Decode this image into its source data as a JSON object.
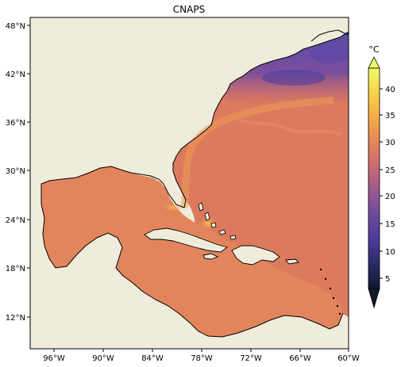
{
  "map": {
    "title": "CNAPS",
    "lon_ticks": [
      "96°W",
      "90°W",
      "84°W",
      "78°W",
      "72°W",
      "66°W",
      "60°W"
    ],
    "lat_ticks": [
      "48°N",
      "42°N",
      "36°N",
      "30°N",
      "24°N",
      "18°N",
      "12°N"
    ],
    "extent": {
      "lon": [
        -98,
        -60
      ],
      "lat": [
        8.5,
        49
      ]
    },
    "land_color": "#efecdc",
    "coastline_color": "#000000"
  },
  "colorbar": {
    "unit": "°C",
    "ticks": [
      "40",
      "35",
      "30",
      "25",
      "20",
      "15",
      "10",
      "5"
    ],
    "range": [
      1,
      45
    ],
    "extend": "both",
    "colormap": "thermal",
    "stops": [
      "#0f1a2b",
      "#2a2a68",
      "#4a3a9a",
      "#6c4a9c",
      "#9a5a8f",
      "#c86a72",
      "#e2855a",
      "#f2a94a",
      "#f7d048",
      "#eefa68"
    ]
  }
}
